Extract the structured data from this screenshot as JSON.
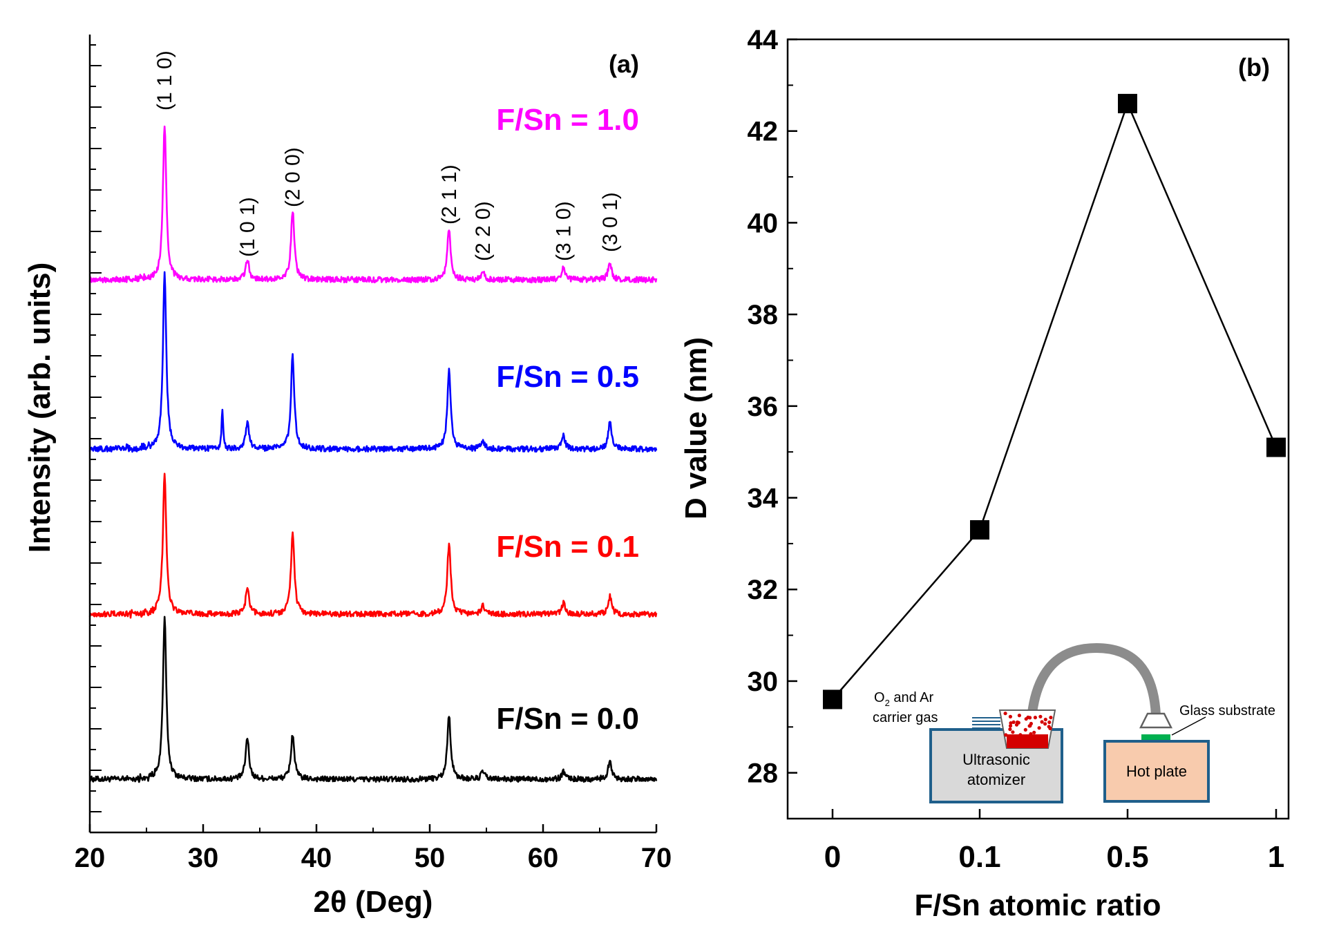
{
  "chart_data": [
    {
      "panel_label": "(a)",
      "type": "line",
      "xlabel": "2θ (Deg)",
      "ylabel": "Intensity (arb. units)",
      "xlim": [
        20,
        70
      ],
      "xticks": [
        "20",
        "30",
        "40",
        "50",
        "60",
        "70"
      ],
      "y_tick_labels_shown": false,
      "peaks_deg": [
        {
          "label": "(1 1 0)",
          "x": 26.6
        },
        {
          "label": "(1 0 1)",
          "x": 33.9
        },
        {
          "label": "(2 0 0)",
          "x": 37.9
        },
        {
          "label": "(2 1 1)",
          "x": 51.7
        },
        {
          "label": "(2 2 0)",
          "x": 54.7
        },
        {
          "label": "(3 1 0)",
          "x": 61.8
        },
        {
          "label": "(3 0 1)",
          "x": 65.9
        }
      ],
      "series": [
        {
          "name": "F/Sn = 0.0",
          "color": "#000000",
          "peak_heights": {
            "26.6": 1.0,
            "33.9": 0.26,
            "37.9": 0.28,
            "51.7": 0.4,
            "54.7": 0.05,
            "61.8": 0.05,
            "65.9": 0.12
          }
        },
        {
          "name": "F/Sn = 0.1",
          "color": "#ff0000",
          "peak_heights": {
            "26.6": 0.88,
            "33.9": 0.16,
            "37.9": 0.51,
            "51.7": 0.44,
            "54.7": 0.05,
            "61.8": 0.07,
            "65.9": 0.11
          }
        },
        {
          "name": "F/Sn = 0.5",
          "color": "#0000ff",
          "peak_heights": {
            "26.6": 1.09,
            "31.7": 0.25,
            "33.9": 0.16,
            "37.9": 0.58,
            "51.7": 0.49,
            "54.7": 0.05,
            "61.8": 0.08,
            "65.9": 0.17
          }
        },
        {
          "name": "F/Sn = 1.0",
          "color": "#ff00ff",
          "peak_heights": {
            "26.6": 0.96,
            "33.9": 0.13,
            "37.9": 0.43,
            "51.7": 0.32,
            "54.7": 0.05,
            "61.8": 0.08,
            "65.9": 0.11
          }
        }
      ]
    },
    {
      "panel_label": "(b)",
      "type": "line",
      "xlabel": "F/Sn atomic ratio",
      "ylabel": "D value (nm)",
      "categories": [
        "0",
        "0.1",
        "0.5",
        "1"
      ],
      "values": [
        29.6,
        33.3,
        42.6,
        35.1
      ],
      "ylim": [
        27,
        44
      ],
      "yticks": [
        "28",
        "30",
        "32",
        "34",
        "36",
        "38",
        "40",
        "42",
        "44"
      ],
      "marker": "square",
      "color": "#000000"
    }
  ],
  "inset": {
    "gas_label_line1_prefix": "O",
    "gas_label_subscript": "2",
    "gas_label_line1_suffix": " and Ar",
    "gas_label_line2": "carrier gas",
    "atomizer_line1": "Ultrasonic",
    "atomizer_line2": "atomizer",
    "hot_plate": "Hot plate",
    "substrate": "Glass substrate",
    "box_border_color": "#1f5f8b",
    "atomizer_fill": "#d9d9d9",
    "hot_plate_fill": "#f8cbad",
    "tube_color": "#8c8c8c",
    "solution_color": "#d40000",
    "substrate_color": "#00b050"
  }
}
